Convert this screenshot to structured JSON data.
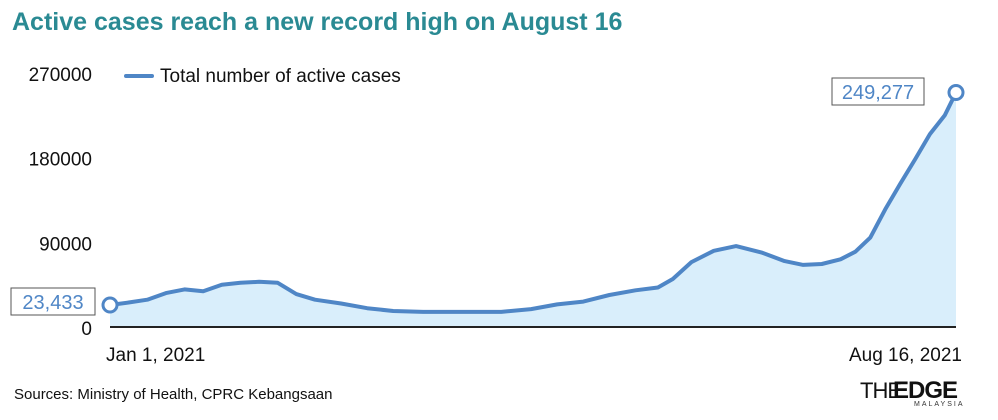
{
  "title": "Active cases reach a new record high on August 16",
  "source": "Sources: Ministry of Health, CPRC Kebangsaan",
  "logo": {
    "the": "THE",
    "edge": "EDGE",
    "sub": "MALAYSIA"
  },
  "colors": {
    "title": "#2a8a93",
    "line": "#4f86c6",
    "fill": "#d9eefb",
    "label": "#4f86c6"
  },
  "chart_data": {
    "type": "area",
    "ylim": [
      0,
      270000
    ],
    "yticks": [
      "0",
      "90000",
      "180000",
      "270000"
    ],
    "x_axis_labels": [
      "Jan 1, 2021",
      "Aug 16, 2021"
    ],
    "legend": {
      "label": "Total number of active cases",
      "position": "top-left"
    },
    "grid": false,
    "series": [
      {
        "name": "Total number of active cases",
        "dates": [
          "2021-01-01",
          "2021-01-06",
          "2021-01-11",
          "2021-01-16",
          "2021-01-21",
          "2021-01-26",
          "2021-01-31",
          "2021-02-05",
          "2021-02-10",
          "2021-02-15",
          "2021-02-20",
          "2021-02-25",
          "2021-03-04",
          "2021-03-11",
          "2021-03-18",
          "2021-03-26",
          "2021-04-02",
          "2021-04-09",
          "2021-04-16",
          "2021-04-24",
          "2021-05-01",
          "2021-05-08",
          "2021-05-15",
          "2021-05-22",
          "2021-05-28",
          "2021-06-01",
          "2021-06-06",
          "2021-06-12",
          "2021-06-18",
          "2021-06-25",
          "2021-07-01",
          "2021-07-06",
          "2021-07-11",
          "2021-07-16",
          "2021-07-20",
          "2021-07-24",
          "2021-07-28",
          "2021-08-01",
          "2021-08-05",
          "2021-08-09",
          "2021-08-13",
          "2021-08-16"
        ],
        "values": [
          23433,
          26000,
          29000,
          36000,
          40000,
          38000,
          45000,
          47000,
          48000,
          47000,
          35000,
          29000,
          25000,
          20000,
          17000,
          16000,
          16000,
          16000,
          16000,
          19000,
          24000,
          27000,
          34000,
          39000,
          42000,
          51000,
          69000,
          81000,
          86000,
          79000,
          70000,
          66000,
          67000,
          72000,
          80000,
          95000,
          125000,
          152000,
          178000,
          205000,
          225000,
          249277
        ]
      }
    ],
    "annotations": [
      {
        "label": "23,433",
        "date": "2021-01-01",
        "value": 23433
      },
      {
        "label": "249,277",
        "date": "2021-08-16",
        "value": 249277
      }
    ]
  }
}
